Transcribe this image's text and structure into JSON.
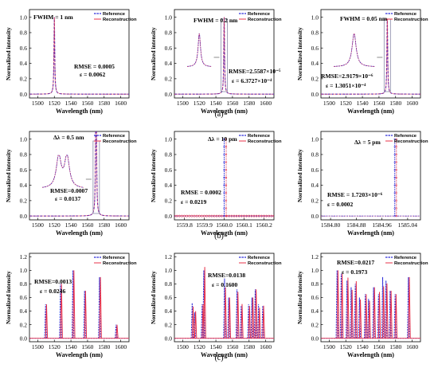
{
  "figure": {
    "row_labels": [
      "(a)",
      "(b)",
      "(c)"
    ]
  },
  "colors": {
    "reference": "#2b2bd9",
    "reconstruction": "#e8334a",
    "inset_box": "#8a8aa8"
  },
  "chart_data": [
    {
      "type": "line",
      "panel": "a1",
      "xlabel": "Wavelength (nm)",
      "ylabel": "Normalized intensity",
      "xlim": [
        1490,
        1610
      ],
      "ylim": [
        -0.05,
        1.1
      ],
      "xticks": [
        "1500",
        "1520",
        "1540",
        "1560",
        "1580",
        "1600"
      ],
      "yticks": [
        "0.0",
        "0.2",
        "0.4",
        "0.6",
        "0.8",
        "1.0"
      ],
      "legend": [
        "Reference",
        "Reconstruction"
      ],
      "annotations": [
        "FWHM = 1 nm",
        "RMSE = 0.0005",
        "ε = 0.0062"
      ],
      "peaks": [
        {
          "center": 1520,
          "height": 1.0,
          "fwhm": 1.0
        }
      ],
      "inset": false
    },
    {
      "type": "line",
      "panel": "a2",
      "xlabel": "Wavelength (nm)",
      "ylabel": "Normalized intensity",
      "xlim": [
        1490,
        1610
      ],
      "ylim": [
        -0.05,
        1.1
      ],
      "xticks": [
        "1500",
        "1520",
        "1540",
        "1560",
        "1580",
        "1600"
      ],
      "yticks": [
        "0.0",
        "0.2",
        "0.4",
        "0.6",
        "0.8",
        "1.0"
      ],
      "legend": [
        "Reference",
        "Reconstruction"
      ],
      "annotations": [
        "FWHM = 0.2 nm",
        "RMSE=2.5587×10⁻⁵",
        "ε = 6.3727×10⁻⁴"
      ],
      "peaks": [
        {
          "center": 1550,
          "height": 1.0,
          "fwhm": 0.2
        }
      ],
      "inset": true
    },
    {
      "type": "line",
      "panel": "a3",
      "xlabel": "Wavelength (nm)",
      "ylabel": "Normalized intensity",
      "xlim": [
        1490,
        1610
      ],
      "ylim": [
        -0.05,
        1.1
      ],
      "xticks": [
        "1500",
        "1520",
        "1540",
        "1560",
        "1580",
        "1600"
      ],
      "yticks": [
        "0.0",
        "0.2",
        "0.4",
        "0.6",
        "0.8",
        "1.0"
      ],
      "legend": [
        "Reference",
        "Reconstruction"
      ],
      "annotations": [
        "FWHM = 0.05 nm",
        "RMSE=2.9179×10⁻⁶",
        "ε = 1.3051×10⁻⁴"
      ],
      "peaks": [
        {
          "center": 1570,
          "height": 1.0,
          "fwhm": 0.05
        }
      ],
      "inset": true
    },
    {
      "type": "line",
      "panel": "b1",
      "xlabel": "Wavelength (nm)",
      "ylabel": "Normalized intensity",
      "xlim": [
        1490,
        1610
      ],
      "ylim": [
        -0.05,
        1.1
      ],
      "xticks": [
        "1500",
        "1520",
        "1540",
        "1560",
        "1580",
        "1600"
      ],
      "yticks": [
        "0.0",
        "0.2",
        "0.4",
        "0.6",
        "0.8",
        "1.0"
      ],
      "legend": [
        "Reference",
        "Reconstruction"
      ],
      "annotations": [
        "Δλ = 0.5 nm",
        "RMSE=0.0007",
        "ε = 0.0137"
      ],
      "peaks": [
        {
          "center": 1570,
          "height": 1.0,
          "fwhm": 0.2
        },
        {
          "center": 1570.5,
          "height": 1.0,
          "fwhm": 0.2
        }
      ],
      "inset": true
    },
    {
      "type": "scatter",
      "panel": "b2",
      "xlabel": "Wavelength (nm)",
      "ylabel": "Normalized intensity",
      "xlim": [
        1559.75,
        1560.25
      ],
      "ylim": [
        -0.05,
        1.1
      ],
      "xticks": [
        "1559.8",
        "1559.9",
        "1560.0",
        "1560.1",
        "1560.2"
      ],
      "yticks": [
        "0.0",
        "0.2",
        "0.4",
        "0.6",
        "0.8",
        "1.0"
      ],
      "legend": [
        "Reference",
        "Reconstruction"
      ],
      "annotations": [
        "Δλ = 10 pm",
        "RMSE = 0.0002",
        "ε = 0.0219"
      ],
      "lines": [
        {
          "x": 1560.0,
          "height": 1.0
        },
        {
          "x": 1560.01,
          "height": 1.0
        }
      ],
      "baseline_markers": true
    },
    {
      "type": "scatter",
      "panel": "b3",
      "xlabel": "Wavelength (nm)",
      "ylabel": "Normalized intensity",
      "xlim": [
        1584.77,
        1585.08
      ],
      "ylim": [
        -0.05,
        1.1
      ],
      "xticks": [
        "1584.80",
        "1584.88",
        "1584.96",
        "1585.04"
      ],
      "xtick_values": [
        1584.8,
        1584.88,
        1584.96,
        1585.04
      ],
      "yticks": [
        "0.0",
        "0.2",
        "0.4",
        "0.6",
        "0.8",
        "1.0"
      ],
      "legend": [
        "Reference",
        "Reconstruction"
      ],
      "annotations": [
        "Δλ = 5 pm",
        "RMSE = 1.7203×10⁻⁶",
        "ε = 0.0002"
      ],
      "lines": [
        {
          "x": 1585.0,
          "height": 1.0
        },
        {
          "x": 1585.005,
          "height": 1.0
        }
      ],
      "baseline_markers": false
    },
    {
      "type": "line",
      "panel": "c1",
      "xlabel": "Wavelength (nm)",
      "ylabel": "Normalized intensity",
      "xlim": [
        1490,
        1610
      ],
      "ylim": [
        -0.05,
        1.25
      ],
      "xticks": [
        "1500",
        "1520",
        "1540",
        "1560",
        "1580",
        "1600"
      ],
      "yticks": [
        "0.0",
        "0.2",
        "0.4",
        "0.6",
        "0.8",
        "1.0",
        "1.2"
      ],
      "legend": [
        "Reference",
        "Reconstruction"
      ],
      "annotations": [
        "RMSE=0.0013",
        "ε = 0.0246"
      ],
      "peaks": [
        {
          "center": 1510,
          "height": 0.5,
          "fwhm": 0.3
        },
        {
          "center": 1528,
          "height": 0.8,
          "fwhm": 0.3
        },
        {
          "center": 1543,
          "height": 1.0,
          "fwhm": 0.3
        },
        {
          "center": 1557,
          "height": 0.7,
          "fwhm": 0.3
        },
        {
          "center": 1575,
          "height": 0.9,
          "fwhm": 0.3
        },
        {
          "center": 1595,
          "height": 0.2,
          "fwhm": 0.3
        }
      ],
      "recon_scale": [
        1.0,
        1.0,
        1.0,
        1.0,
        1.0,
        1.0
      ]
    },
    {
      "type": "line",
      "panel": "c2",
      "xlabel": "Wavelength (nm)",
      "ylabel": "Normalized intensity",
      "xlim": [
        1490,
        1610
      ],
      "ylim": [
        -0.05,
        1.25
      ],
      "xticks": [
        "1500",
        "1520",
        "1540",
        "1560",
        "1580",
        "1600"
      ],
      "yticks": [
        "0.0",
        "0.2",
        "0.4",
        "0.6",
        "0.8",
        "1.0",
        "1.2"
      ],
      "legend": [
        "Reference",
        "Reconstruction"
      ],
      "annotations": [
        "RMSE=0.0138",
        "ε = 0.1600"
      ],
      "peaks": [
        {
          "center": 1512,
          "height": 0.52,
          "fwhm": 0.3
        },
        {
          "center": 1515,
          "height": 0.38,
          "fwhm": 0.3
        },
        {
          "center": 1524,
          "height": 0.5,
          "fwhm": 0.3
        },
        {
          "center": 1526,
          "height": 1.0,
          "fwhm": 0.3
        },
        {
          "center": 1551,
          "height": 0.88,
          "fwhm": 0.3
        },
        {
          "center": 1556,
          "height": 0.6,
          "fwhm": 0.3
        },
        {
          "center": 1566,
          "height": 0.72,
          "fwhm": 0.3
        },
        {
          "center": 1571,
          "height": 0.48,
          "fwhm": 0.3
        },
        {
          "center": 1580,
          "height": 0.5,
          "fwhm": 0.3
        },
        {
          "center": 1584,
          "height": 0.6,
          "fwhm": 0.3
        },
        {
          "center": 1588,
          "height": 0.72,
          "fwhm": 0.3
        },
        {
          "center": 1592,
          "height": 0.5,
          "fwhm": 0.3
        },
        {
          "center": 1597,
          "height": 0.48,
          "fwhm": 0.3
        }
      ],
      "recon_scale": [
        0.9,
        1.05,
        1.0,
        1.05,
        0.85,
        1.0,
        0.95,
        1.05,
        0.95,
        1.0,
        1.0,
        0.9,
        1.0
      ]
    },
    {
      "type": "line",
      "panel": "c3",
      "xlabel": "Wavelength (nm)",
      "ylabel": "Normalized intensity",
      "xlim": [
        1490,
        1610
      ],
      "ylim": [
        -0.05,
        1.25
      ],
      "xticks": [
        "1500",
        "1520",
        "1540",
        "1560",
        "1580",
        "1600"
      ],
      "yticks": [
        "0.0",
        "0.2",
        "0.4",
        "0.6",
        "0.8",
        "1.0",
        "1.2"
      ],
      "legend": [
        "Reference",
        "Reconstruction"
      ],
      "annotations": [
        "RMSE=0.0217",
        "ε = 0.1973"
      ],
      "peaks": [
        {
          "center": 1510,
          "height": 1.0,
          "fwhm": 0.3
        },
        {
          "center": 1515,
          "height": 0.95,
          "fwhm": 0.3
        },
        {
          "center": 1522,
          "height": 0.85,
          "fwhm": 0.3
        },
        {
          "center": 1527,
          "height": 0.75,
          "fwhm": 0.3
        },
        {
          "center": 1532,
          "height": 0.8,
          "fwhm": 0.3
        },
        {
          "center": 1537,
          "height": 0.6,
          "fwhm": 0.3
        },
        {
          "center": 1544,
          "height": 0.65,
          "fwhm": 0.3
        },
        {
          "center": 1548,
          "height": 0.58,
          "fwhm": 0.3
        },
        {
          "center": 1554,
          "height": 0.75,
          "fwhm": 0.3
        },
        {
          "center": 1560,
          "height": 0.65,
          "fwhm": 0.3
        },
        {
          "center": 1565,
          "height": 0.9,
          "fwhm": 0.3
        },
        {
          "center": 1569,
          "height": 0.85,
          "fwhm": 0.3
        },
        {
          "center": 1574,
          "height": 0.7,
          "fwhm": 0.3
        },
        {
          "center": 1580,
          "height": 0.65,
          "fwhm": 0.3
        },
        {
          "center": 1596,
          "height": 0.9,
          "fwhm": 0.3
        }
      ],
      "recon_scale": [
        1.0,
        1.0,
        1.05,
        0.95,
        1.05,
        0.95,
        1.0,
        0.95,
        1.0,
        1.05,
        0.85,
        0.95,
        1.0,
        1.0,
        1.0
      ]
    }
  ]
}
